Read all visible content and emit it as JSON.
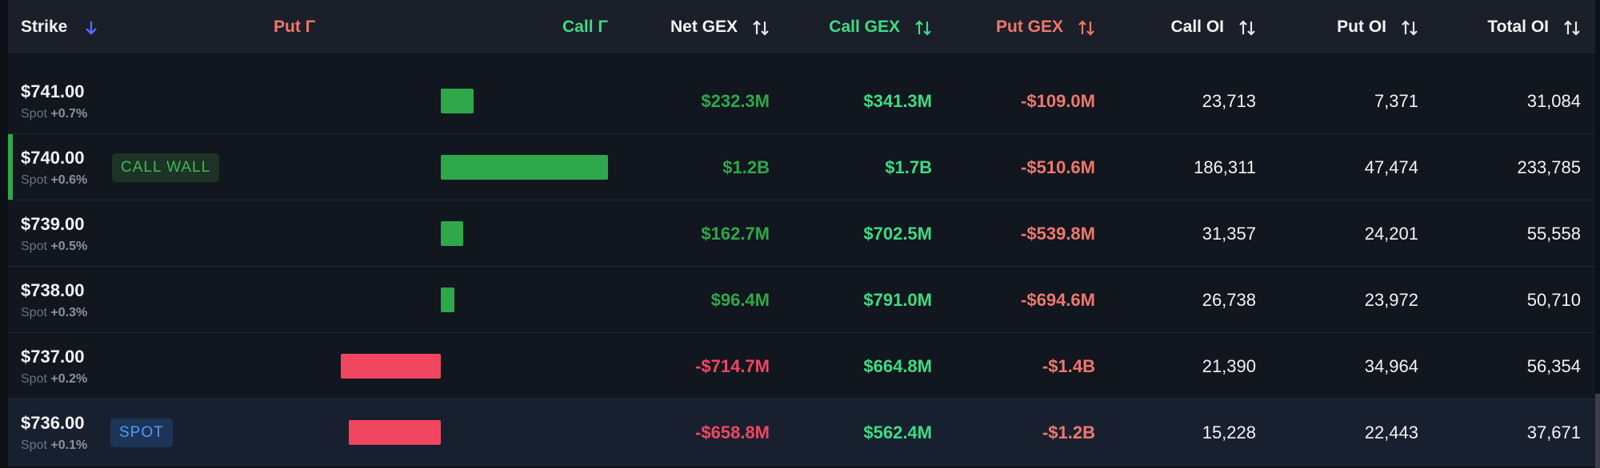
{
  "header": {
    "columns": [
      "Strike",
      "Put Γ",
      "Call Γ",
      "Net GEX",
      "Call GEX",
      "Put GEX",
      "Call OI",
      "Put OI",
      "Total OI"
    ]
  },
  "rows": [
    {
      "strike": "$741.00",
      "spot_label": "Spot",
      "spot_change": "+0.7%",
      "net_gex": "$232.3M",
      "call_gex": "$341.3M",
      "put_gex": "-$109.0M",
      "call_oi": "23,713",
      "put_oi": "7,371",
      "total_oi": "31,084"
    },
    {
      "strike": "$740.00",
      "spot_label": "Spot",
      "spot_change": "+0.6%",
      "badge": "CALL WALL",
      "net_gex": "$1.2B",
      "call_gex": "$1.7B",
      "put_gex": "-$510.6M",
      "call_oi": "186,311",
      "put_oi": "47,474",
      "total_oi": "233,785"
    },
    {
      "strike": "$739.00",
      "spot_label": "Spot",
      "spot_change": "+0.5%",
      "net_gex": "$162.7M",
      "call_gex": "$702.5M",
      "put_gex": "-$539.8M",
      "call_oi": "31,357",
      "put_oi": "24,201",
      "total_oi": "55,558"
    },
    {
      "strike": "$738.00",
      "spot_label": "Spot",
      "spot_change": "+0.3%",
      "net_gex": "$96.4M",
      "call_gex": "$791.0M",
      "put_gex": "-$694.6M",
      "call_oi": "26,738",
      "put_oi": "23,972",
      "total_oi": "50,710"
    },
    {
      "strike": "$737.00",
      "spot_label": "Spot",
      "spot_change": "+0.2%",
      "net_gex": "-$714.7M",
      "call_gex": "$664.8M",
      "put_gex": "-$1.4B",
      "call_oi": "21,390",
      "put_oi": "34,964",
      "total_oi": "56,354"
    },
    {
      "strike": "$736.00",
      "spot_label": "Spot",
      "spot_change": "+0.1%",
      "badge": "SPOT",
      "net_gex": "-$658.8M",
      "call_gex": "$562.4M",
      "put_gex": "-$1.2B",
      "call_oi": "15,228",
      "put_oi": "22,443",
      "total_oi": "37,671"
    }
  ]
}
